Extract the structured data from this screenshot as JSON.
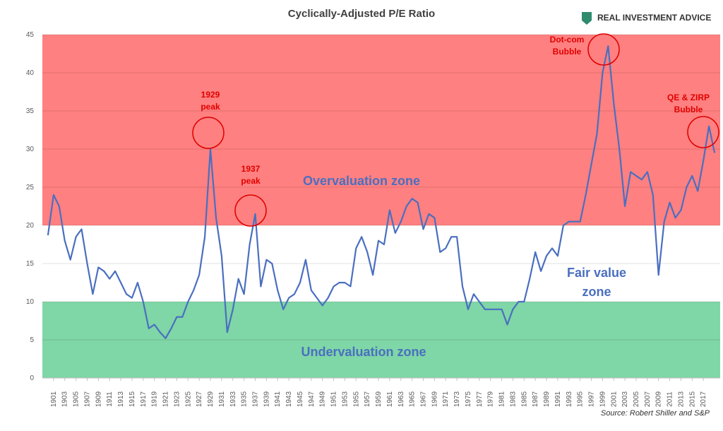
{
  "chart_data": {
    "type": "line",
    "title": "Cyclically-Adjusted P/E Ratio",
    "brand": "REAL INVESTMENT ADVICE",
    "source": "Source: Robert Shiller and S&P",
    "color": "#4a6fc0",
    "grid": true,
    "xlim": [
      1899,
      2020
    ],
    "ylim": [
      0,
      45
    ],
    "yticks": [
      0,
      5,
      10,
      15,
      20,
      25,
      30,
      35,
      40,
      45
    ],
    "xticks": [
      1901,
      1903,
      1905,
      1907,
      1909,
      1911,
      1913,
      1915,
      1917,
      1919,
      1921,
      1923,
      1925,
      1927,
      1929,
      1931,
      1933,
      1935,
      1937,
      1939,
      1941,
      1943,
      1945,
      1947,
      1949,
      1951,
      1953,
      1955,
      1957,
      1959,
      1961,
      1963,
      1965,
      1967,
      1969,
      1971,
      1973,
      1975,
      1977,
      1979,
      1981,
      1983,
      1985,
      1987,
      1989,
      1991,
      1993,
      1995,
      1997,
      1999,
      2001,
      2003,
      2005,
      2007,
      2009,
      2011,
      2013,
      2015,
      2017
    ],
    "zones": [
      {
        "label": [
          "Overvaluation zone"
        ],
        "from": 20,
        "to": 45,
        "color": "#ff8080"
      },
      {
        "label": [
          "Fair value",
          "zone"
        ],
        "from": 10,
        "to": 20,
        "color": "#ffffff"
      },
      {
        "label": [
          "Undervaluation zone"
        ],
        "from": 0,
        "to": 10,
        "color": "#7fd6a6"
      }
    ],
    "annotations": [
      [
        "1929",
        "peak"
      ],
      [
        "1937",
        "peak"
      ],
      [
        "Dot-com",
        "Bubble"
      ],
      [
        "QE & ZIRP",
        "Bubble"
      ]
    ],
    "x": [
      1900,
      1901,
      1902,
      1903,
      1904,
      1905,
      1906,
      1907,
      1908,
      1909,
      1910,
      1911,
      1912,
      1913,
      1914,
      1915,
      1916,
      1917,
      1918,
      1919,
      1920,
      1921,
      1922,
      1923,
      1924,
      1925,
      1926,
      1927,
      1928,
      1929,
      1930,
      1931,
      1932,
      1933,
      1934,
      1935,
      1936,
      1937,
      1938,
      1939,
      1940,
      1941,
      1942,
      1943,
      1944,
      1945,
      1946,
      1947,
      1948,
      1949,
      1950,
      1951,
      1952,
      1953,
      1954,
      1955,
      1956,
      1957,
      1958,
      1959,
      1960,
      1961,
      1962,
      1963,
      1964,
      1965,
      1966,
      1967,
      1968,
      1969,
      1970,
      1971,
      1972,
      1973,
      1974,
      1975,
      1976,
      1977,
      1978,
      1979,
      1980,
      1981,
      1982,
      1983,
      1984,
      1985,
      1986,
      1987,
      1988,
      1989,
      1990,
      1991,
      1992,
      1993,
      1994,
      1995,
      1996,
      1997,
      1998,
      1999,
      2000,
      2001,
      2002,
      2003,
      2004,
      2005,
      2006,
      2007,
      2008,
      2009,
      2010,
      2011,
      2012,
      2013,
      2014,
      2015,
      2016,
      2017,
      2018,
      2019
    ],
    "values": [
      18.7,
      24,
      22.5,
      18,
      15.5,
      18.5,
      19.5,
      15,
      11,
      14.5,
      14,
      13,
      14,
      12.5,
      11,
      10.5,
      12.5,
      10,
      6.5,
      7,
      6,
      5.2,
      6.5,
      8,
      8,
      10,
      11.5,
      13.5,
      18.5,
      30,
      21,
      16,
      6,
      9,
      13,
      11,
      17.5,
      21.5,
      12,
      15.5,
      15,
      11.5,
      9,
      10.5,
      11,
      12.5,
      15.5,
      11.5,
      10.5,
      9.5,
      10.5,
      12,
      12.5,
      12.5,
      12,
      17,
      18.5,
      16.5,
      13.5,
      18,
      17.5,
      22,
      19,
      20.5,
      22.5,
      23.5,
      23,
      19.5,
      21.5,
      21,
      16.5,
      17,
      18.5,
      18.5,
      12,
      9,
      11,
      10,
      9,
      9,
      9,
      9,
      7,
      9,
      10,
      10,
      13,
      16.5,
      14,
      16,
      17,
      16,
      20,
      20.5,
      20.5,
      20.5,
      24,
      28,
      32,
      40,
      43.5,
      36,
      30,
      22.5,
      27,
      26.5,
      26,
      27,
      24,
      13.5,
      20.5,
      23,
      21,
      22,
      25,
      26.5,
      24.5,
      28.5,
      33,
      29.5
    ]
  }
}
